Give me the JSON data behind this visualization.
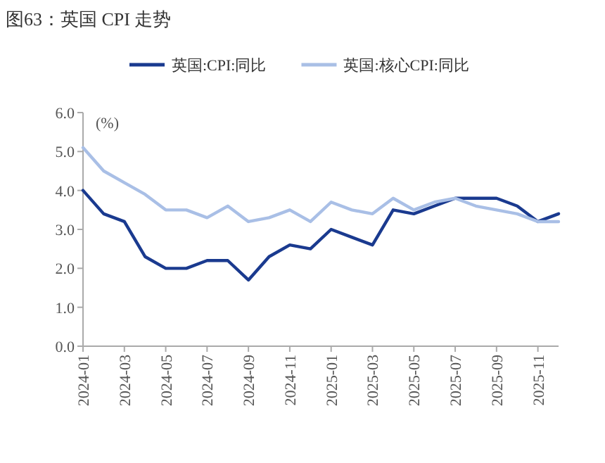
{
  "chart_data": {
    "type": "line",
    "title": "图63：英国 CPI 走势",
    "ylabel": "(%)",
    "categories": [
      "2024-01",
      null,
      "2024-03",
      null,
      "2024-05",
      null,
      "2024-07",
      null,
      "2024-09",
      null,
      "2024-11",
      null,
      "2025-01",
      null,
      "2025-03",
      null,
      "2025-05",
      null,
      "2025-07",
      null,
      "2025-09",
      null,
      "2025-11",
      null
    ],
    "series": [
      {
        "name": "英国:CPI:同比",
        "color": "#1a3a8f",
        "values": [
          4.0,
          3.4,
          3.2,
          2.3,
          2.0,
          2.0,
          2.2,
          2.2,
          1.7,
          2.3,
          2.6,
          2.5,
          3.0,
          2.8,
          2.6,
          3.5,
          3.4,
          3.6,
          3.8,
          3.8,
          3.8,
          3.6,
          3.2,
          3.4
        ]
      },
      {
        "name": "英国:核心CPI:同比",
        "color": "#a9bfe6",
        "values": [
          5.1,
          4.5,
          4.2,
          3.9,
          3.5,
          3.5,
          3.3,
          3.6,
          3.2,
          3.3,
          3.5,
          3.2,
          3.7,
          3.5,
          3.4,
          3.8,
          3.5,
          3.7,
          3.8,
          3.6,
          3.5,
          3.4,
          3.2,
          3.2
        ]
      }
    ],
    "ylim": [
      0,
      6
    ],
    "yticks": [
      {
        "value": 0,
        "label": "0.0"
      },
      {
        "value": 1,
        "label": "1.0"
      },
      {
        "value": 2,
        "label": "2.0"
      },
      {
        "value": 3,
        "label": "3.0"
      },
      {
        "value": 4,
        "label": "4.0"
      },
      {
        "value": 5,
        "label": "5.0"
      },
      {
        "value": 6,
        "label": "6.0"
      }
    ],
    "grid": false,
    "legend": "top",
    "marker": "none",
    "line_style": "solid"
  }
}
